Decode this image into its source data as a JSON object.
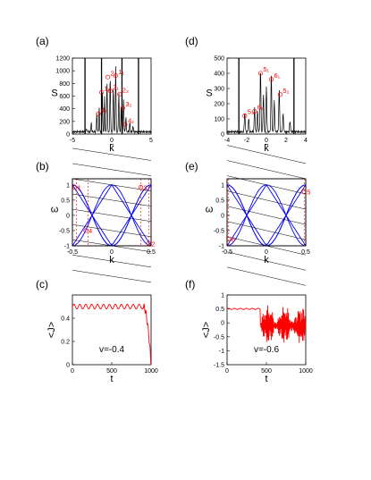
{
  "colors": {
    "spectrum": "#000000",
    "marker": "#ff0000",
    "band": "#0000ff",
    "line": "#000000",
    "current": "#ff0000",
    "guide": "#ff0000"
  },
  "chart_data": [
    {
      "id": "a",
      "panel_label": "(a)",
      "type": "line",
      "xlabel": "k̃",
      "ylabel": "S",
      "xlim": [
        -5,
        5
      ],
      "ylim": [
        0,
        1200
      ],
      "xticks": [
        -5,
        0,
        5
      ],
      "yticks": [
        0,
        200,
        400,
        600,
        800,
        1000,
        1200
      ],
      "peaks": [
        {
          "x": -1.9,
          "y": 300
        },
        {
          "x": -1.6,
          "y": 380
        },
        {
          "x": -1.2,
          "y": 670
        },
        {
          "x": -0.9,
          "y": 560
        },
        {
          "x": -0.6,
          "y": 800
        },
        {
          "x": -0.2,
          "y": 900
        },
        {
          "x": 0.2,
          "y": 720
        },
        {
          "x": 0.5,
          "y": 1050
        },
        {
          "x": 0.9,
          "y": 640
        },
        {
          "x": 1.2,
          "y": 420
        },
        {
          "x": 1.5,
          "y": 520
        },
        {
          "x": 1.8,
          "y": 240
        },
        {
          "x": 2.3,
          "y": 150
        },
        {
          "x": -2.6,
          "y": 140
        },
        {
          "x": 2.7,
          "y": 90
        },
        {
          "x": -3.2,
          "y": 60
        }
      ],
      "vlines": [
        -3.4,
        -1.3,
        1.3,
        3.4
      ],
      "markers": [
        {
          "label": "2₁",
          "x": -0.5,
          "y": 900
        },
        {
          "label": "1₁",
          "x": 0.5,
          "y": 920
        },
        {
          "label": "1₂",
          "x": -1.3,
          "y": 660
        },
        {
          "label": "3₁",
          "x": -0.2,
          "y": 680
        },
        {
          "label": "2₂",
          "x": 1.0,
          "y": 630
        },
        {
          "label": "4₁",
          "x": -1.7,
          "y": 320
        },
        {
          "label": "3₂",
          "x": 1.4,
          "y": 410
        },
        {
          "label": "4₂",
          "x": 1.7,
          "y": 150
        }
      ]
    },
    {
      "id": "d",
      "panel_label": "(d)",
      "type": "line",
      "xlabel": "k̃",
      "ylabel": "S",
      "xlim": [
        -4,
        4
      ],
      "ylim": [
        0,
        500
      ],
      "xticks": [
        -4,
        -2,
        0,
        2,
        4
      ],
      "yticks": [
        0,
        100,
        200,
        300,
        400,
        500
      ],
      "peaks": [
        {
          "x": -2.2,
          "y": 130
        },
        {
          "x": -1.8,
          "y": 90
        },
        {
          "x": -1.2,
          "y": 160
        },
        {
          "x": -0.9,
          "y": 140
        },
        {
          "x": -0.6,
          "y": 420
        },
        {
          "x": -0.3,
          "y": 250
        },
        {
          "x": 0.0,
          "y": 300
        },
        {
          "x": 0.5,
          "y": 380
        },
        {
          "x": 0.8,
          "y": 200
        },
        {
          "x": 1.3,
          "y": 280
        },
        {
          "x": 1.7,
          "y": 120
        },
        {
          "x": 2.4,
          "y": 70
        }
      ],
      "vlines": [
        -2.8,
        2.8
      ],
      "markers": [
        {
          "label": "5₁",
          "x": -0.6,
          "y": 400
        },
        {
          "label": "6₁",
          "x": 0.5,
          "y": 360
        },
        {
          "label": "5₂",
          "x": 1.4,
          "y": 260
        },
        {
          "label": "6₂",
          "x": -1.2,
          "y": 150
        },
        {
          "label": "5₃",
          "x": -2.2,
          "y": 120
        }
      ]
    },
    {
      "id": "b",
      "panel_label": "(b)",
      "type": "line",
      "xlabel": "k",
      "ylabel": "ω",
      "xlim": [
        -0.5,
        0.5
      ],
      "ylim": [
        -1,
        1.2
      ],
      "xticks": [
        -0.5,
        0,
        0.5
      ],
      "yticks": [
        -1,
        -0.5,
        0,
        0.5,
        1
      ],
      "band_amplitude": 1.0,
      "slope": -0.4,
      "guides": [
        -0.45,
        -0.3,
        0.37,
        0.47
      ],
      "markers": [
        {
          "label": "1",
          "x": -0.47,
          "y": 0.92
        },
        {
          "label": "3",
          "x": 0.37,
          "y": 0.92
        },
        {
          "label": "4",
          "x": -0.33,
          "y": -0.5
        },
        {
          "label": "2",
          "x": 0.47,
          "y": -0.92
        }
      ]
    },
    {
      "id": "e",
      "panel_label": "(e)",
      "type": "line",
      "xlabel": "k",
      "ylabel": "ω",
      "xlim": [
        -0.5,
        0.5
      ],
      "ylim": [
        -1,
        1.2
      ],
      "xticks": [
        -0.5,
        0,
        0.5
      ],
      "yticks": [
        -1,
        -0.5,
        0,
        0.5,
        1
      ],
      "band_amplitude": 1.0,
      "slope": -0.6,
      "guides": [
        -0.48,
        0.48
      ],
      "markers": [
        {
          "label": "6",
          "x": -0.48,
          "y": -0.78
        },
        {
          "label": "5",
          "x": 0.48,
          "y": 0.78
        }
      ]
    },
    {
      "id": "c",
      "panel_label": "(c)",
      "type": "line",
      "xlabel": "t",
      "ylabel": "<J>",
      "xlim": [
        0,
        1000
      ],
      "ylim": [
        0,
        0.6
      ],
      "xticks": [
        0,
        500,
        1000
      ],
      "yticks": [
        0,
        0.2,
        0.4
      ],
      "annotation": "v=-0.4",
      "series": [
        {
          "shape": "stable-then-drop",
          "base": 0.5,
          "drop_start": 900,
          "end_value": 0.0
        }
      ]
    },
    {
      "id": "f",
      "panel_label": "(f)",
      "type": "line",
      "xlabel": "t",
      "ylabel": "<J>",
      "xlim": [
        0,
        1000
      ],
      "ylim": [
        -1.5,
        1
      ],
      "xticks": [
        0,
        500,
        1000
      ],
      "yticks": [
        -1.5,
        -1,
        -0.5,
        0,
        0.5,
        1
      ],
      "annotation": "v=-0.6",
      "series": [
        {
          "shape": "stable-then-noisy",
          "base": 0.5,
          "noise_start": 420
        }
      ]
    }
  ]
}
